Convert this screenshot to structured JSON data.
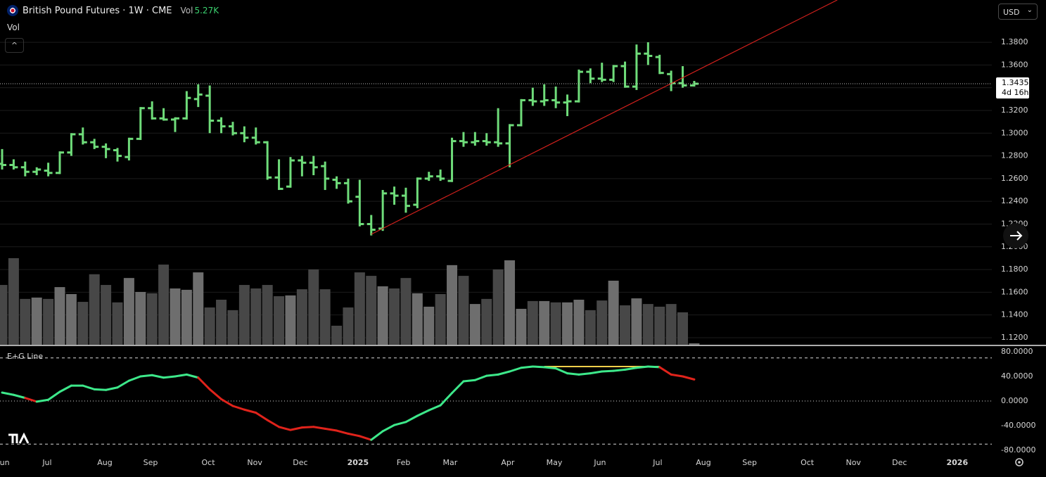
{
  "header": {
    "title": "British Pound Futures · 1W · CME",
    "vol_label": "Vol",
    "vol_value": "5.27K",
    "pane_label": "Vol",
    "currency": "USD"
  },
  "chart_data": [
    {
      "type": "ohlc",
      "color": "#6fdc7a",
      "open": [
        1.273,
        1.272,
        1.27,
        1.266,
        1.267,
        1.265,
        1.283,
        1.299,
        1.292,
        1.288,
        1.285,
        1.279,
        1.295,
        1.322,
        1.313,
        1.312,
        1.313,
        1.33,
        1.333,
        1.311,
        1.306,
        1.3,
        1.296,
        1.292,
        1.261,
        1.253,
        1.276,
        1.274,
        1.271,
        1.259,
        1.256,
        1.244,
        1.22,
        1.216,
        1.247,
        1.245,
        1.237,
        1.26,
        1.262,
        1.258,
        1.293,
        1.292,
        1.293,
        1.292,
        1.291,
        1.307,
        1.329,
        1.328,
        1.329,
        1.327,
        1.328,
        1.354,
        1.348,
        1.347,
        1.359,
        1.341,
        1.37,
        1.367,
        1.352,
        1.344,
        1.342
      ],
      "high": [
        1.286,
        1.277,
        1.275,
        1.27,
        1.274,
        1.284,
        1.3,
        1.305,
        1.295,
        1.291,
        1.287,
        1.296,
        1.323,
        1.328,
        1.322,
        1.314,
        1.337,
        1.343,
        1.342,
        1.314,
        1.31,
        1.306,
        1.305,
        1.293,
        1.277,
        1.279,
        1.28,
        1.28,
        1.275,
        1.262,
        1.26,
        1.259,
        1.228,
        1.25,
        1.253,
        1.252,
        1.261,
        1.266,
        1.268,
        1.296,
        1.301,
        1.301,
        1.3,
        1.322,
        1.308,
        1.33,
        1.34,
        1.343,
        1.341,
        1.334,
        1.356,
        1.357,
        1.362,
        1.36,
        1.363,
        1.378,
        1.38,
        1.369,
        1.355,
        1.359,
        1.346
      ],
      "low": [
        1.268,
        1.268,
        1.262,
        1.263,
        1.262,
        1.264,
        1.28,
        1.29,
        1.286,
        1.278,
        1.275,
        1.276,
        1.294,
        1.312,
        1.311,
        1.301,
        1.312,
        1.323,
        1.3,
        1.3,
        1.298,
        1.292,
        1.29,
        1.259,
        1.25,
        1.252,
        1.262,
        1.263,
        1.25,
        1.251,
        1.238,
        1.218,
        1.21,
        1.214,
        1.237,
        1.23,
        1.234,
        1.258,
        1.258,
        1.257,
        1.288,
        1.289,
        1.289,
        1.288,
        1.27,
        1.306,
        1.324,
        1.324,
        1.322,
        1.315,
        1.327,
        1.344,
        1.345,
        1.345,
        1.34,
        1.338,
        1.36,
        1.352,
        1.337,
        1.34,
        1.341
      ],
      "close": [
        1.272,
        1.27,
        1.266,
        1.268,
        1.265,
        1.283,
        1.299,
        1.292,
        1.288,
        1.286,
        1.28,
        1.295,
        1.322,
        1.313,
        1.312,
        1.313,
        1.331,
        1.334,
        1.311,
        1.306,
        1.3,
        1.296,
        1.292,
        1.261,
        1.251,
        1.276,
        1.274,
        1.27,
        1.26,
        1.256,
        1.24,
        1.22,
        1.215,
        1.247,
        1.245,
        1.236,
        1.26,
        1.262,
        1.26,
        1.293,
        1.292,
        1.293,
        1.292,
        1.291,
        1.307,
        1.329,
        1.328,
        1.329,
        1.327,
        1.328,
        1.354,
        1.348,
        1.347,
        1.359,
        1.341,
        1.37,
        1.368,
        1.353,
        1.344,
        1.342,
        1.3435
      ],
      "countdown": "4d 16h",
      "ylim": [
        1.1138,
        1.4172
      ],
      "yticks": [
        {
          "value": 1.38,
          "label": "1.3800"
        },
        {
          "value": 1.36,
          "label": "1.3600"
        },
        {
          "value": 1.34,
          "label": "1.3400"
        },
        {
          "value": 1.32,
          "label": "1.3200"
        },
        {
          "value": 1.3,
          "label": "1.3000"
        },
        {
          "value": 1.28,
          "label": "1.2800"
        },
        {
          "value": 1.26,
          "label": "1.2600"
        },
        {
          "value": 1.24,
          "label": "1.2400"
        },
        {
          "value": 1.22,
          "label": "1.2200"
        },
        {
          "value": 1.2,
          "label": "1.2000"
        },
        {
          "value": 1.18,
          "label": "1.1800"
        },
        {
          "value": 1.16,
          "label": "1.1600"
        },
        {
          "value": 1.14,
          "label": "1.1400"
        },
        {
          "value": 1.12,
          "label": "1.1200"
        }
      ],
      "grid": true,
      "xlim": [
        -0.183,
        85.8
      ],
      "xticks": [
        {
          "value": 0.12,
          "label": "Jun"
        },
        {
          "value": 3.9,
          "label": "Jul"
        },
        {
          "value": 8.9,
          "label": "Aug"
        },
        {
          "value": 12.87,
          "label": "Sep"
        },
        {
          "value": 17.87,
          "label": "Oct"
        },
        {
          "value": 21.9,
          "label": "Nov"
        },
        {
          "value": 25.85,
          "label": "Dec"
        },
        {
          "value": 30.85,
          "label": "2025"
        },
        {
          "value": 34.8,
          "label": "Feb"
        },
        {
          "value": 38.84,
          "label": "Mar"
        },
        {
          "value": 43.84,
          "label": "Apr"
        },
        {
          "value": 47.87,
          "label": "May"
        },
        {
          "value": 51.83,
          "label": "Jun"
        },
        {
          "value": 56.83,
          "label": "Jul"
        },
        {
          "value": 60.8,
          "label": "Aug"
        },
        {
          "value": 64.8,
          "label": "Sep"
        },
        {
          "value": 69.8,
          "label": "Oct"
        },
        {
          "value": 73.8,
          "label": "Nov"
        },
        {
          "value": 77.8,
          "label": "Dec"
        },
        {
          "value": 82.8,
          "label": "2026"
        }
      ],
      "trend_line": {
        "x": [
          32,
          72.4
        ],
        "y": [
          1.211,
          1.4172
        ],
        "color": "#d0201c"
      }
    },
    {
      "type": "volume",
      "up_color": "#6e6e6e",
      "down_color": "#474747",
      "values": [
        223,
        323,
        171,
        176,
        171,
        215,
        189,
        160,
        263,
        223,
        158,
        249,
        197,
        192,
        299,
        210,
        205,
        270,
        139,
        168,
        129,
        223,
        210,
        223,
        181,
        184,
        207,
        281,
        207,
        71,
        139,
        270,
        257,
        218,
        210,
        249,
        192,
        142,
        189,
        297,
        257,
        152,
        171,
        281,
        315,
        134,
        163,
        163,
        158,
        158,
        168,
        129,
        165,
        239,
        147,
        173,
        152,
        142,
        152,
        121,
        5.27
      ],
      "ylim": [
        0,
        420
      ]
    },
    {
      "type": "line",
      "name": "E+G Line",
      "values": [
        13.7,
        10,
        5,
        -1,
        2,
        15,
        25,
        25,
        19,
        18,
        22,
        33,
        40,
        42,
        38,
        40,
        43,
        38,
        19,
        3,
        -8,
        -14,
        -19,
        -31,
        -42,
        -47,
        -43,
        -42,
        -45,
        -48,
        -53,
        -57,
        -63,
        -49,
        -39,
        -34,
        -24,
        -15,
        -7,
        13,
        32,
        34,
        41,
        43,
        48,
        54,
        56,
        55,
        53,
        45,
        43,
        45,
        48,
        49,
        51,
        54,
        56,
        55,
        43,
        40,
        35
      ],
      "colors": [
        "#3de88a",
        "#3de88a",
        "#3de88a",
        "#e0231b",
        "#3de88a",
        "#3de88a",
        "#3de88a",
        "#3de88a",
        "#3de88a",
        "#3de88a",
        "#3de88a",
        "#3de88a",
        "#3de88a",
        "#3de88a",
        "#3de88a",
        "#3de88a",
        "#3de88a",
        "#3de88a",
        "#e0231b",
        "#e0231b",
        "#e0231b",
        "#e0231b",
        "#e0231b",
        "#e0231b",
        "#e0231b",
        "#e0231b",
        "#e0231b",
        "#e0231b",
        "#e0231b",
        "#e0231b",
        "#e0231b",
        "#e0231b",
        "#e0231b",
        "#3de88a",
        "#3de88a",
        "#3de88a",
        "#3de88a",
        "#3de88a",
        "#3de88a",
        "#3de88a",
        "#3de88a",
        "#3de88a",
        "#3de88a",
        "#3de88a",
        "#3de88a",
        "#3de88a",
        "#3de88a",
        "#3de88a",
        "#3de88a",
        "#3de88a",
        "#3de88a",
        "#3de88a",
        "#3de88a",
        "#3de88a",
        "#3de88a",
        "#3de88a",
        "#3de88a",
        "#3de88a",
        "#e0231b",
        "#e0231b",
        "#e0231b"
      ],
      "ylim": [
        -91.4,
        85.7
      ],
      "yticks": [
        {
          "value": 80,
          "label": "80.0000"
        },
        {
          "value": 40,
          "label": "40.0000"
        },
        {
          "value": 0,
          "label": "0.0000"
        },
        {
          "value": -40,
          "label": "-40.0000"
        },
        {
          "value": -80,
          "label": "-80.0000"
        }
      ],
      "levels": [
        70,
        0,
        -70
      ],
      "level_color": "#d9d9d9",
      "annotation": {
        "x": [
          47,
          57
        ],
        "value": 56,
        "color": "#f0cf4a"
      }
    }
  ]
}
